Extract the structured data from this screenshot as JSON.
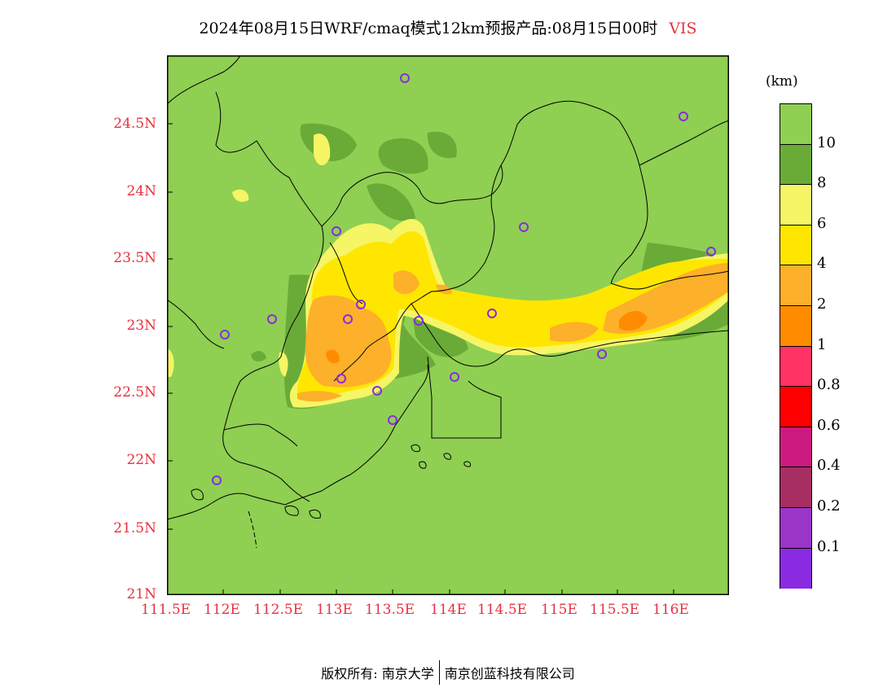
{
  "title": {
    "main": "2024年08月15日WRF/cmaq模式12km预报产品:08月15日00时",
    "variable": "VIS"
  },
  "map": {
    "y_labels": [
      "24.5N",
      "24N",
      "23.5N",
      "23N",
      "22.5N",
      "22N",
      "21.5N",
      "21N"
    ],
    "x_labels": [
      "111.5E",
      "112E",
      "112.5E",
      "113E",
      "113.5E",
      "114E",
      "114.5E",
      "115E",
      "115.5E",
      "116E"
    ]
  },
  "legend": {
    "unit": "(km)",
    "labels": [
      "10",
      "8",
      "6",
      "4",
      "2",
      "1",
      "0.8",
      "0.6",
      "0.4",
      "0.2",
      "0.1"
    ],
    "colors": [
      "#8fcf52",
      "#6aab37",
      "#f5f565",
      "#ffe600",
      "#fdb02a",
      "#ff8c00",
      "#ff3366",
      "#ff0000",
      "#cc1a80",
      "#a62e60",
      "#9b35c8",
      "#8a2be2"
    ]
  },
  "colors": {
    "land": "#8fcf52",
    "label_red": "#e8313f",
    "station_marker": "#8a2be2"
  },
  "footer": {
    "left": "版权所有: 南京大学",
    "right": "南京创蓝科技有限公司"
  }
}
